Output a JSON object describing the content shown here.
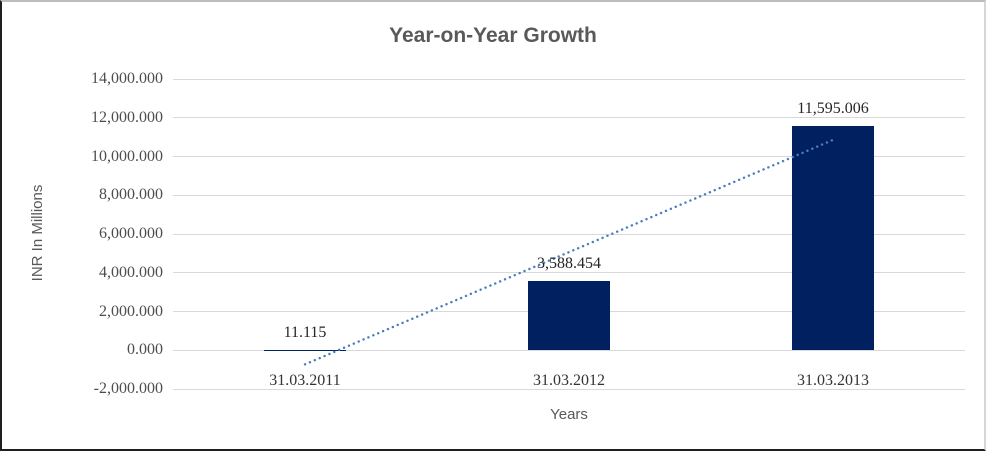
{
  "chart_data": {
    "type": "bar",
    "title": "Year-on-Year Growth",
    "xlabel": "Years",
    "ylabel": "INR In Millions",
    "categories": [
      "31.03.2011",
      "31.03.2012",
      "31.03.2013"
    ],
    "values": [
      11.115,
      3588.454,
      11595.006
    ],
    "data_labels": [
      "11.115",
      "3,588.454",
      "11,595.006"
    ],
    "y_axis": {
      "min": -2000,
      "max": 14000,
      "step": 2000,
      "ticks": [
        {
          "value": 14000,
          "label": "14,000.000"
        },
        {
          "value": 12000,
          "label": "12,000.000"
        },
        {
          "value": 10000,
          "label": "10,000.000"
        },
        {
          "value": 8000,
          "label": "8,000.000"
        },
        {
          "value": 6000,
          "label": "6,000.000"
        },
        {
          "value": 4000,
          "label": "4,000.000"
        },
        {
          "value": 2000,
          "label": "2,000.000"
        },
        {
          "value": 0,
          "label": "0.000"
        },
        {
          "value": -2000,
          "label": "-2,000.000"
        }
      ]
    },
    "grid": true,
    "legend": "none",
    "trendline": {
      "type": "linear",
      "style": "dotted",
      "color": "#4a7ebb"
    },
    "colors": {
      "bar": "#002060",
      "gridline": "#d9d9d9",
      "title": "#595959",
      "axis_title": "#595959",
      "tick_label": "#4d4d4d",
      "data_label": "#262626",
      "plot_background": "#ffffff"
    }
  }
}
